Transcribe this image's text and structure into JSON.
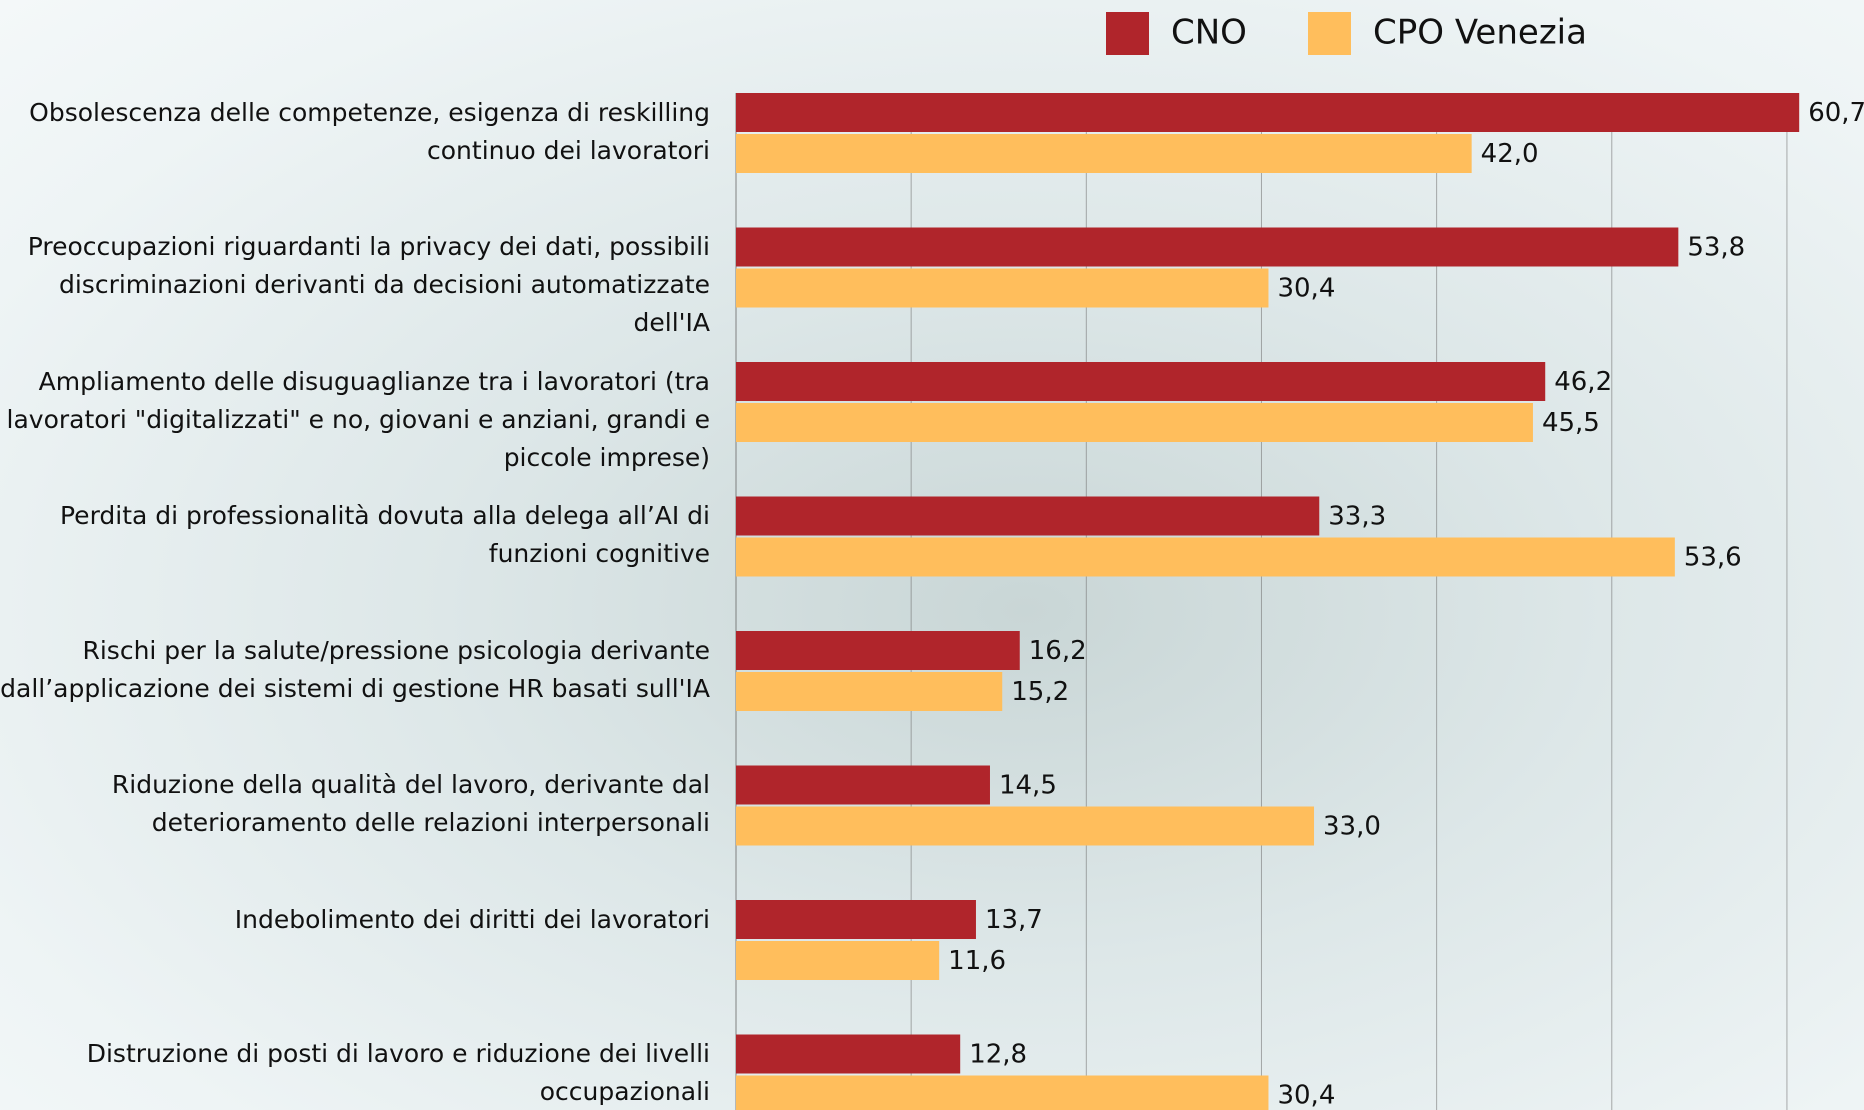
{
  "chart_data": {
    "type": "bar",
    "orientation": "horizontal",
    "categories": [
      "Obsolescenza delle competenze, esigenza di reskilling continuo dei lavoratori",
      "Preoccupazioni riguardanti la privacy dei dati, possibili discriminazioni derivanti da decisioni automatizzate dell'IA",
      "Ampliamento delle disuguaglianze tra i lavoratori (tra lavoratori \"digitalizzati\" e no, giovani e anziani, grandi e piccole imprese)",
      "Perdita di professionalità dovuta alla delega all’AI di funzioni cognitive",
      "Rischi per la salute/pressione psicologia derivante dall’applicazione dei sistemi di gestione HR basati sull'IA",
      "Riduzione della qualità del lavoro, derivante dal deterioramento delle relazioni interpersonali",
      "Indebolimento dei diritti dei lavoratori",
      "Distruzione di posti di lavoro e riduzione dei livelli occupazionali"
    ],
    "series": [
      {
        "name": "CNO",
        "color": "#b0252b",
        "values": [
          60.7,
          53.8,
          46.2,
          33.3,
          16.2,
          14.5,
          13.7,
          12.8
        ],
        "value_labels": [
          "60,7",
          "53,8",
          "46,2",
          "33,3",
          "16,2",
          "14,5",
          "13,7",
          "12,8"
        ]
      },
      {
        "name": "CPO Venezia",
        "color": "#ffbe5c",
        "values": [
          42.0,
          30.4,
          45.5,
          53.6,
          15.2,
          33.0,
          11.6,
          30.4
        ],
        "value_labels": [
          "42,0",
          "30,4",
          "45,5",
          "53,6",
          "15,2",
          "33,0",
          "11,6",
          "30,4"
        ]
      }
    ],
    "xlim": [
      0,
      64
    ],
    "xticks": [
      0,
      10,
      20,
      30,
      40,
      50,
      60
    ],
    "grid": true,
    "legend": "top"
  }
}
